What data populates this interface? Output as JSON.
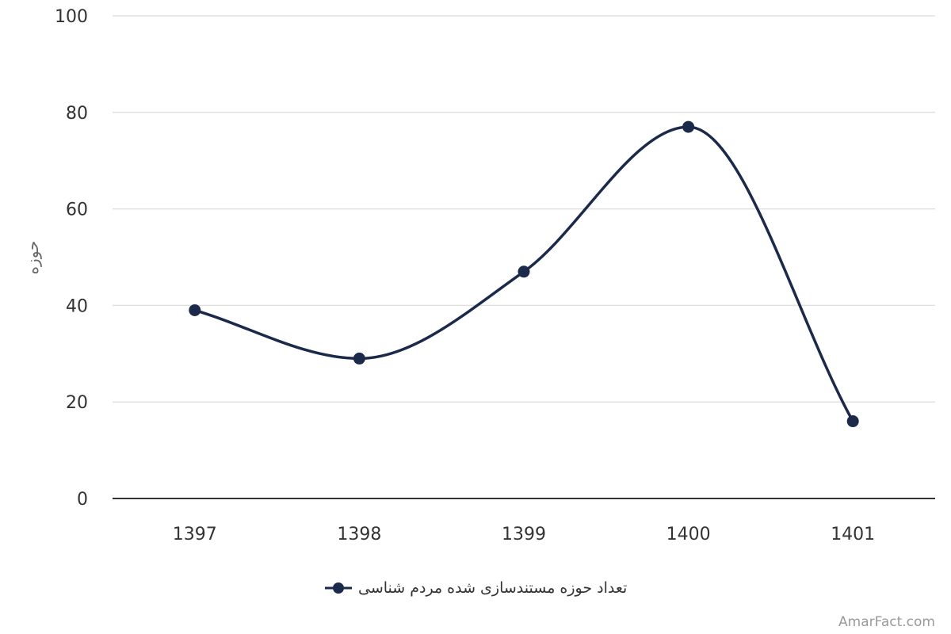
{
  "chart_data": {
    "type": "line",
    "smooth": true,
    "categories": [
      "1397",
      "1398",
      "1399",
      "1400",
      "1401"
    ],
    "series": [
      {
        "name": "تعداد حوزه مستندسازی شده مردم شناسی",
        "values": [
          39,
          29,
          47,
          77,
          16
        ]
      }
    ],
    "ylabel": "حوزه",
    "xlabel": "",
    "ylim": [
      0,
      100
    ],
    "yticks": [
      "0",
      "20",
      "40",
      "60",
      "80",
      "100"
    ],
    "grid": true,
    "legend": "bottom-center",
    "colors": {
      "series": "#1b2a4a",
      "grid": "#e0e0e0",
      "axis": "#333333"
    }
  },
  "credit": "AmarFact.com"
}
